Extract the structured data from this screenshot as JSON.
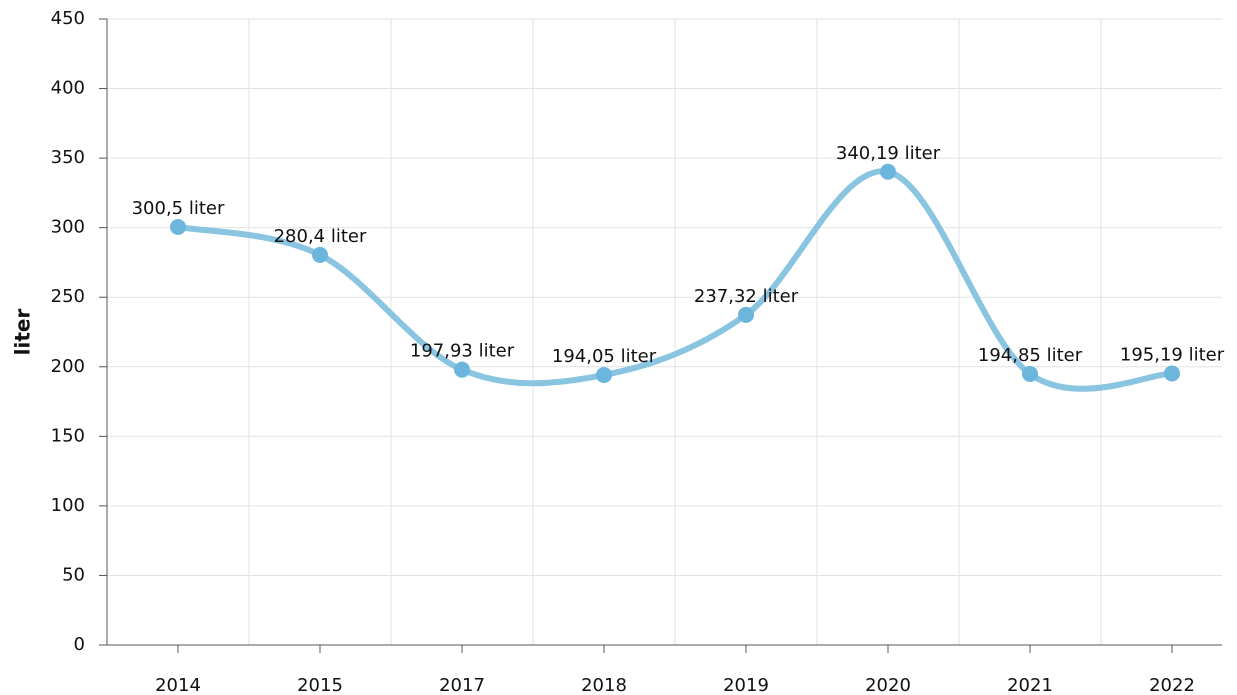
{
  "chart_data": {
    "type": "line",
    "y_label": "liter",
    "categories": [
      "2014",
      "2015",
      "2017",
      "2018",
      "2019",
      "2020",
      "2021",
      "2022"
    ],
    "series": [
      {
        "name": "liter",
        "color": "#89c4e1",
        "marker_color": "#6cb6dd",
        "values": [
          300.5,
          280.4,
          197.93,
          194.05,
          237.32,
          340.19,
          194.85,
          195.19
        ],
        "value_labels": [
          "300,5 liter",
          "280,4 liter",
          "197,93 liter",
          "194,05 liter",
          "237,32 liter",
          "340,19 liter",
          "194,85 liter",
          "195,19 liter"
        ]
      }
    ],
    "ylim": [
      0,
      450
    ],
    "yticks": [
      0,
      50,
      100,
      150,
      200,
      250,
      300,
      350,
      400,
      450
    ],
    "grid": true
  }
}
